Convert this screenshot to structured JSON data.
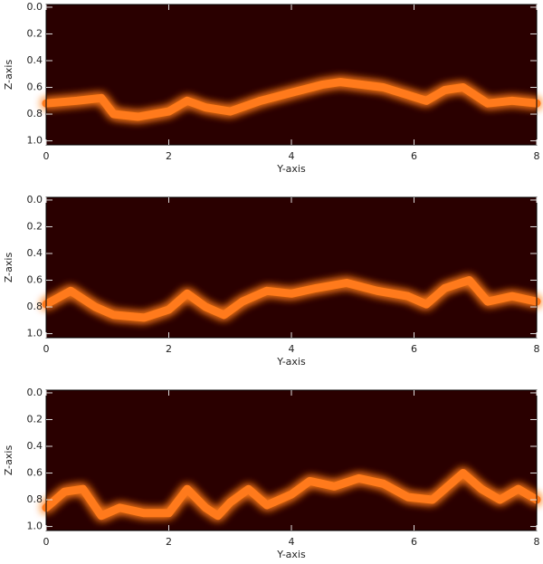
{
  "chart_data": [
    {
      "type": "line",
      "xlabel": "Y-axis",
      "ylabel": "Z-axis",
      "xlim": [
        0,
        8
      ],
      "xticks": [
        0,
        2,
        4,
        6,
        8
      ],
      "ylim": [
        -0.02,
        1.03
      ],
      "y_inverted": true,
      "yticks": [
        {
          "value": 0,
          "label": "0.0"
        },
        0.2,
        0.4,
        0.6,
        0.8,
        {
          "value": 1,
          "label": "1.0"
        }
      ],
      "background": "#2a0000",
      "x": [
        0,
        0.5,
        0.9,
        1.1,
        1.5,
        2.0,
        2.3,
        2.6,
        3.0,
        3.5,
        4.0,
        4.5,
        4.8,
        5.5,
        6.2,
        6.5,
        6.8,
        7.2,
        7.6,
        8
      ],
      "series": [
        {
          "name": "ridge",
          "color": "#ff7a1a",
          "values": [
            0.72,
            0.7,
            0.68,
            0.8,
            0.82,
            0.78,
            0.7,
            0.75,
            0.78,
            0.7,
            0.64,
            0.58,
            0.56,
            0.6,
            0.7,
            0.62,
            0.6,
            0.72,
            0.7,
            0.72
          ]
        }
      ]
    },
    {
      "type": "line",
      "xlabel": "Y-axis",
      "ylabel": "Z-axis",
      "xlim": [
        0,
        8
      ],
      "xticks": [
        0,
        2,
        4,
        6,
        8
      ],
      "ylim": [
        -0.02,
        1.03
      ],
      "y_inverted": true,
      "yticks": [
        {
          "value": 0,
          "label": "0.0"
        },
        0.2,
        0.4,
        0.6,
        0.8,
        {
          "value": 1,
          "label": "1.0"
        }
      ],
      "background": "#2a0000",
      "x": [
        0,
        0.4,
        0.8,
        1.1,
        1.6,
        2.0,
        2.3,
        2.6,
        2.9,
        3.2,
        3.6,
        4.0,
        4.4,
        4.9,
        5.4,
        5.9,
        6.2,
        6.5,
        6.9,
        7.2,
        7.6,
        8
      ],
      "series": [
        {
          "name": "ridge",
          "color": "#ff7a1a",
          "values": [
            0.78,
            0.68,
            0.8,
            0.86,
            0.88,
            0.82,
            0.7,
            0.8,
            0.86,
            0.76,
            0.68,
            0.7,
            0.66,
            0.62,
            0.68,
            0.72,
            0.78,
            0.66,
            0.6,
            0.76,
            0.72,
            0.76
          ]
        }
      ]
    },
    {
      "type": "line",
      "xlabel": "Y-axis",
      "ylabel": "Z-axis",
      "xlim": [
        0,
        8
      ],
      "xticks": [
        0,
        2,
        4,
        6,
        8
      ],
      "ylim": [
        -0.02,
        1.03
      ],
      "y_inverted": true,
      "yticks": [
        {
          "value": 0,
          "label": "0.0"
        },
        0.2,
        0.4,
        0.6,
        0.8,
        {
          "value": 1,
          "label": "1.0"
        }
      ],
      "background": "#2a0000",
      "x": [
        0,
        0.3,
        0.6,
        0.9,
        1.2,
        1.6,
        2.0,
        2.3,
        2.6,
        2.8,
        3.0,
        3.3,
        3.6,
        4.0,
        4.3,
        4.7,
        5.1,
        5.5,
        5.9,
        6.3,
        6.8,
        7.1,
        7.4,
        7.7,
        8
      ],
      "series": [
        {
          "name": "ridge",
          "color": "#ff7a1a",
          "values": [
            0.86,
            0.74,
            0.72,
            0.92,
            0.86,
            0.9,
            0.9,
            0.72,
            0.86,
            0.92,
            0.82,
            0.72,
            0.84,
            0.76,
            0.66,
            0.7,
            0.64,
            0.68,
            0.78,
            0.8,
            0.6,
            0.72,
            0.8,
            0.72,
            0.8
          ]
        }
      ]
    }
  ]
}
